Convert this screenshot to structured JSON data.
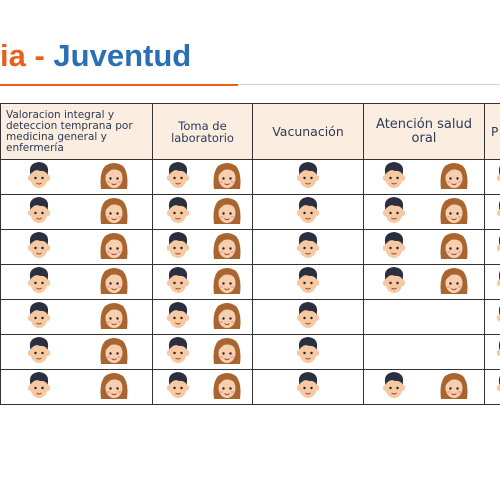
{
  "header": {
    "title_part1": "ia",
    "title_sep": " - ",
    "title_part2": "Juventud"
  },
  "table": {
    "columns": [
      "Valoracion integral y deteccion temprana por medicina general y enfermería",
      "Toma de laboratorio",
      "Vacunación",
      "Atención salud oral",
      "P"
    ],
    "rows": [
      [
        "both",
        "both",
        "male",
        "both",
        "partial"
      ],
      [
        "both",
        "both",
        "male",
        "both",
        "partial"
      ],
      [
        "both",
        "both",
        "male",
        "both",
        "partial"
      ],
      [
        "both",
        "both",
        "male",
        "both",
        "partial"
      ],
      [
        "both",
        "both",
        "male",
        "none",
        "partial"
      ],
      [
        "both",
        "both",
        "male",
        "none",
        "partial"
      ],
      [
        "both",
        "both",
        "male",
        "both",
        "partial"
      ]
    ]
  },
  "icons": {
    "male": "young-man-face-icon",
    "female": "young-woman-face-icon"
  },
  "colors": {
    "title_orange": "#e8601c",
    "title_blue": "#2a6fb5",
    "header_bg": "#fbeee0",
    "border": "#333333",
    "skin": "#f6c9a2",
    "male_hair": "#2b2f3f",
    "female_hair": "#a8652f"
  }
}
